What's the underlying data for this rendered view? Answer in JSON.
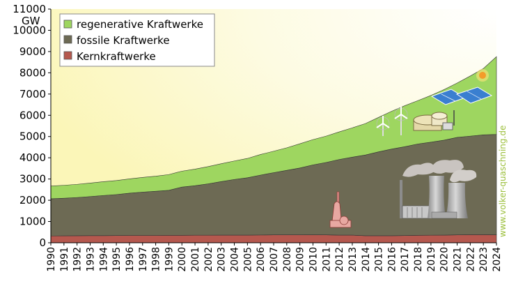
{
  "chart_data": {
    "type": "area",
    "stacked": true,
    "unit": "GW",
    "ylim": [
      0,
      11000
    ],
    "yticks": [
      0,
      1000,
      2000,
      3000,
      4000,
      5000,
      6000,
      7000,
      8000,
      9000,
      10000,
      11000
    ],
    "x": [
      "1990",
      "1991",
      "1992",
      "1993",
      "1994",
      "1995",
      "1996",
      "1997",
      "1998",
      "1999",
      "2000",
      "2001",
      "2002",
      "2003",
      "2004",
      "2005",
      "2006",
      "2007",
      "2008",
      "2009",
      "2010",
      "2011",
      "2012",
      "2013",
      "2014",
      "2015",
      "2016",
      "2017",
      "2018",
      "2019",
      "2020",
      "2021",
      "2022",
      "2023",
      "2024"
    ],
    "series": [
      {
        "name": "Kernkraftwerke",
        "color": "#b5584e",
        "values": [
          320,
          325,
          330,
          335,
          335,
          340,
          345,
          345,
          345,
          350,
          350,
          355,
          355,
          360,
          360,
          360,
          365,
          370,
          370,
          370,
          375,
          370,
          360,
          360,
          330,
          330,
          330,
          340,
          350,
          355,
          360,
          370,
          380,
          380,
          375
        ]
      },
      {
        "name": "fossile Kraftwerke",
        "color": "#6d6a54",
        "values": [
          1750,
          1770,
          1800,
          1840,
          1890,
          1930,
          1990,
          2040,
          2080,
          2120,
          2270,
          2330,
          2420,
          2520,
          2620,
          2700,
          2820,
          2930,
          3040,
          3150,
          3290,
          3410,
          3560,
          3670,
          3800,
          3950,
          4080,
          4180,
          4300,
          4380,
          4470,
          4590,
          4640,
          4700,
          4725
        ]
      },
      {
        "name": "regenerative Kraftwerke",
        "color": "#9ed660",
        "values": [
          600,
          610,
          620,
          635,
          650,
          660,
          670,
          690,
          710,
          740,
          750,
          780,
          810,
          840,
          870,
          910,
          970,
          1010,
          1060,
          1140,
          1190,
          1240,
          1300,
          1380,
          1480,
          1620,
          1780,
          1930,
          2040,
          2200,
          2380,
          2560,
          2830,
          3120,
          3660
        ]
      }
    ],
    "legend_position": "top-left",
    "credit": "www.volker-quaschning.de"
  }
}
